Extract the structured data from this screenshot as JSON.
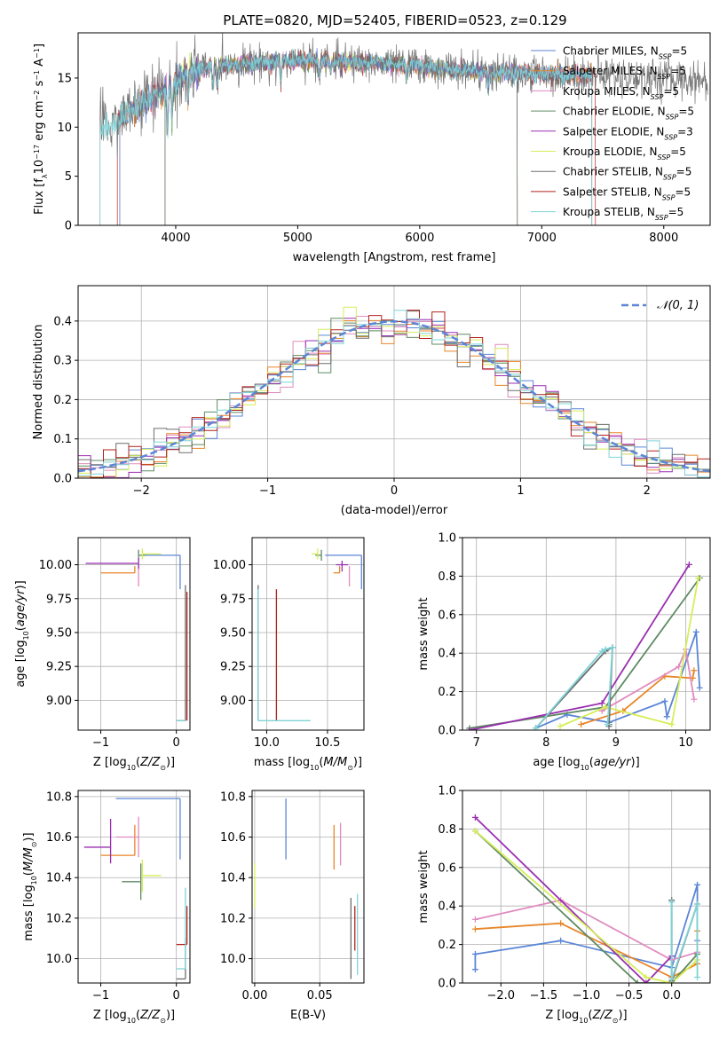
{
  "figure_title": "PLATE=0820, MJD=52405, FIBERID=0523, z=0.129",
  "colors": {
    "chabrier_miles": "#5b86d6",
    "salpeter_miles": "#e8862a",
    "kroupa_miles": "#e08bc0",
    "chabrier_elodie": "#5f8a63",
    "salpeter_elodie": "#9a2fb0",
    "kroupa_elodie": "#d6ee5a",
    "chabrier_stelib": "#6e6e6e",
    "salpeter_stelib": "#b2221c",
    "kroupa_stelib": "#7fd3d6",
    "grid": "#b0b0b0"
  },
  "chart_data": [
    {
      "id": "spectrum",
      "type": "line",
      "title": "PLATE=0820, MJD=52405, FIBERID=0523, z=0.129",
      "xlabel": "wavelength [Angstrom, rest frame]",
      "ylabel": "Flux [f_λ10^-17 erg cm^-2 s^-1 A^-1]",
      "xlim": [
        3200,
        8380
      ],
      "ylim": [
        0,
        19.6
      ],
      "xticks": [
        4000,
        5000,
        6000,
        7000,
        8000
      ],
      "yticks": [
        0,
        5,
        10,
        15
      ],
      "grid": false,
      "legend_position": "top-right",
      "legend": [
        {
          "label": "Chabrier MILES, N_SSP=5",
          "color_key": "chabrier_miles"
        },
        {
          "label": "Salpeter MILES, N_SSP=5",
          "color_key": "salpeter_miles"
        },
        {
          "label": "Kroupa MILES, N_SSP=5",
          "color_key": "kroupa_miles"
        },
        {
          "label": "Chabrier ELODIE, N_SSP=5",
          "color_key": "chabrier_elodie"
        },
        {
          "label": "Salpeter ELODIE, N_SSP=3",
          "color_key": "salpeter_elodie"
        },
        {
          "label": "Kroupa ELODIE, N_SSP=5",
          "color_key": "kroupa_elodie"
        },
        {
          "label": "Chabrier STELIB, N_SSP=5",
          "color_key": "chabrier_stelib"
        },
        {
          "label": "Salpeter STELIB, N_SSP=5",
          "color_key": "salpeter_stelib"
        },
        {
          "label": "Kroupa STELIB, N_SSP=5",
          "color_key": "kroupa_stelib"
        }
      ],
      "continuum": {
        "x": [
          3380,
          3500,
          3650,
          3800,
          3950,
          4100,
          4300,
          4600,
          5000,
          5500,
          6000,
          6500,
          7000,
          7500,
          8000,
          8360
        ],
        "y": [
          9.6,
          10.5,
          11.8,
          13.0,
          14.2,
          15.4,
          16.2,
          16.5,
          16.8,
          16.6,
          16.2,
          15.6,
          15.4,
          15.3,
          15.0,
          14.8
        ]
      },
      "series_ranges": [
        {
          "color_key": "salpeter_stelib",
          "start": 3520,
          "end": 7440
        },
        {
          "color_key": "kroupa_elodie",
          "start": 3910,
          "end": 6800
        },
        {
          "color_key": "salpeter_elodie",
          "start": 3910,
          "end": 6800
        },
        {
          "color_key": "chabrier_elodie",
          "start": 3910,
          "end": 6800
        },
        {
          "color_key": "salpeter_miles",
          "start": 3540,
          "end": 7410
        },
        {
          "color_key": "kroupa_miles",
          "start": 3540,
          "end": 7410
        },
        {
          "color_key": "chabrier_miles",
          "start": 3540,
          "end": 7410
        },
        {
          "color_key": "chabrier_stelib",
          "start": 3380,
          "end": 8360
        },
        {
          "color_key": "kroupa_stelib",
          "start": 3380,
          "end": 7410
        }
      ]
    },
    {
      "id": "residuals",
      "type": "line",
      "xlabel": "(data-model)/error",
      "ylabel": "Normed distribution",
      "xlim": [
        -2.5,
        2.5
      ],
      "ylim": [
        0,
        0.49
      ],
      "xticks": [
        -2,
        -1,
        0,
        1,
        2
      ],
      "yticks": [
        0.0,
        0.1,
        0.2,
        0.3,
        0.4
      ],
      "grid": true,
      "legend_position": "top-right",
      "legend": [
        {
          "label": "𝒩(0, 1)",
          "color_key": "chabrier_miles",
          "style": "dashed"
        }
      ],
      "bin_width": 0.1,
      "bin_start": -2.5,
      "reference_curve": "normal(0,1)"
    },
    {
      "id": "age_vs_Z",
      "type": "scatter",
      "xlabel": "Z [log10(Z/Z⊙)]",
      "ylabel": "age  [log10(age/yr)]",
      "xlim": [
        -1.3,
        0.18
      ],
      "ylim": [
        8.78,
        10.2
      ],
      "xticks": [
        -1,
        0
      ],
      "yticks": [
        9.0,
        9.25,
        9.5,
        9.75,
        10.0
      ],
      "grid": true,
      "points": [
        {
          "color_key": "chabrier_miles",
          "x": 0.05,
          "y": 10.07,
          "xerr": [
            0.45,
            0.0
          ],
          "yerr": [
            0.25,
            0.0
          ]
        },
        {
          "color_key": "salpeter_miles",
          "x": -0.55,
          "y": 9.94,
          "xerr": [
            0.45,
            0.0
          ],
          "yerr": [
            0.0,
            0.05
          ]
        },
        {
          "color_key": "kroupa_miles",
          "x": -0.5,
          "y": 9.94,
          "xerr": [
            0.0,
            0.0
          ],
          "yerr": [
            0.1,
            0.05
          ]
        },
        {
          "color_key": "chabrier_elodie",
          "x": -0.5,
          "y": 10.07,
          "xerr": [
            0.0,
            0.1
          ],
          "yerr": [
            0.04,
            0.04
          ]
        },
        {
          "color_key": "salpeter_elodie",
          "x": -0.5,
          "y": 10.01,
          "xerr": [
            0.7,
            0.0
          ],
          "yerr": [
            0.04,
            0.04
          ]
        },
        {
          "color_key": "kroupa_elodie",
          "x": -0.45,
          "y": 10.08,
          "xerr": [
            0.0,
            0.25
          ],
          "yerr": [
            0.04,
            0.04
          ]
        },
        {
          "color_key": "chabrier_stelib",
          "x": 0.12,
          "y": 8.85,
          "xerr": [
            0.12,
            0.0
          ],
          "yerr": [
            0.0,
            1.0
          ]
        },
        {
          "color_key": "salpeter_stelib",
          "x": 0.14,
          "y": 8.85,
          "xerr": [
            0.0,
            0.0
          ],
          "yerr": [
            0.0,
            0.95
          ]
        },
        {
          "color_key": "kroupa_stelib",
          "x": 0.12,
          "y": 8.85,
          "xerr": [
            0.12,
            0.0
          ],
          "yerr": [
            0.0,
            0.0
          ]
        }
      ]
    },
    {
      "id": "age_vs_mass",
      "type": "scatter",
      "xlabel": "mass [log10(M/M⊙)]",
      "ylabel": "",
      "xlim": [
        9.88,
        10.8
      ],
      "ylim": [
        8.78,
        10.2
      ],
      "xticks": [
        10.0,
        10.5
      ],
      "yticks": [
        9.0,
        9.25,
        9.5,
        9.75,
        10.0
      ],
      "grid": true,
      "points": [
        {
          "color_key": "chabrier_miles",
          "x": 10.78,
          "y": 10.07,
          "xerr": [
            0.3,
            0.0
          ],
          "yerr": [
            0.25,
            0.0
          ]
        },
        {
          "color_key": "salpeter_miles",
          "x": 10.6,
          "y": 9.94,
          "xerr": [
            0.05,
            0.0
          ],
          "yerr": [
            0.0,
            0.05
          ]
        },
        {
          "color_key": "kroupa_miles",
          "x": 10.68,
          "y": 9.94,
          "xerr": [
            0.0,
            0.0
          ],
          "yerr": [
            0.1,
            0.05
          ]
        },
        {
          "color_key": "chabrier_elodie",
          "x": 10.45,
          "y": 10.07,
          "xerr": [
            0.05,
            0.0
          ],
          "yerr": [
            0.04,
            0.04
          ]
        },
        {
          "color_key": "salpeter_elodie",
          "x": 10.62,
          "y": 10.0,
          "xerr": [
            0.05,
            0.05
          ],
          "yerr": [
            0.05,
            0.03
          ]
        },
        {
          "color_key": "kroupa_elodie",
          "x": 10.42,
          "y": 10.08,
          "xerr": [
            0.05,
            0.0
          ],
          "yerr": [
            0.04,
            0.04
          ]
        },
        {
          "color_key": "chabrier_stelib",
          "x": 9.93,
          "y": 8.85,
          "xerr": [
            0.0,
            0.0
          ],
          "yerr": [
            0.0,
            1.0
          ]
        },
        {
          "color_key": "salpeter_stelib",
          "x": 10.08,
          "y": 8.85,
          "xerr": [
            0.0,
            0.0
          ],
          "yerr": [
            0.0,
            0.97
          ]
        },
        {
          "color_key": "kroupa_stelib",
          "x": 9.93,
          "y": 8.85,
          "xerr": [
            0.0,
            0.43
          ],
          "yerr": [
            0.0,
            0.97
          ]
        }
      ]
    },
    {
      "id": "mass_weight_vs_age",
      "type": "line",
      "xlabel": "age  [log10(age/yr)]",
      "ylabel": "mass weight",
      "xlim": [
        6.8,
        10.35
      ],
      "ylim": [
        0,
        1.0
      ],
      "xticks": [
        7,
        8,
        9,
        10
      ],
      "yticks": [
        0.0,
        0.2,
        0.4,
        0.6,
        0.8,
        1.0
      ],
      "grid": true,
      "series": [
        {
          "color_key": "chabrier_miles",
          "x": [
            7.85,
            8.3,
            8.9,
            9.7,
            9.73,
            10.15,
            10.2
          ],
          "y": [
            0.01,
            0.08,
            0.04,
            0.15,
            0.07,
            0.51,
            0.22
          ]
        },
        {
          "color_key": "salpeter_miles",
          "x": [
            8.5,
            9.1,
            9.7,
            10.1,
            10.12
          ],
          "y": [
            0.03,
            0.1,
            0.28,
            0.27,
            0.31
          ]
        },
        {
          "color_key": "kroupa_miles",
          "x": [
            8.8,
            9.9,
            10.0,
            10.12
          ],
          "y": [
            0.1,
            0.33,
            0.42,
            0.16
          ]
        },
        {
          "color_key": "chabrier_elodie",
          "x": [
            6.9,
            8.85,
            10.2
          ],
          "y": [
            0.01,
            0.12,
            0.79
          ]
        },
        {
          "color_key": "salpeter_elodie",
          "x": [
            6.9,
            8.8,
            10.05
          ],
          "y": [
            0.0,
            0.14,
            0.86
          ]
        },
        {
          "color_key": "kroupa_elodie",
          "x": [
            8.2,
            8.85,
            9.8,
            10.18
          ],
          "y": [
            0.02,
            0.12,
            0.03,
            0.79
          ]
        },
        {
          "color_key": "chabrier_stelib",
          "x": [
            7.85,
            8.85,
            8.95,
            8.9,
            8.9
          ],
          "y": [
            0.01,
            0.41,
            0.43,
            0.02,
            0.03
          ]
        },
        {
          "color_key": "salpeter_stelib",
          "x": [],
          "y": []
        },
        {
          "color_key": "kroupa_stelib",
          "x": [
            7.85,
            8.8,
            8.85,
            8.95,
            8.88
          ],
          "y": [
            0.01,
            0.41,
            0.42,
            0.43,
            0.03
          ]
        }
      ]
    },
    {
      "id": "mass_vs_Z",
      "type": "scatter",
      "xlabel": "Z [log10(Z/Z⊙)]",
      "ylabel": "mass [log10(M/M⊙)]",
      "xlim": [
        -1.3,
        0.18
      ],
      "ylim": [
        9.88,
        10.83
      ],
      "xticks": [
        -1,
        0
      ],
      "yticks": [
        10.0,
        10.2,
        10.4,
        10.6,
        10.8
      ],
      "grid": true,
      "points": [
        {
          "color_key": "chabrier_miles",
          "x": 0.05,
          "y": 10.79,
          "xerr": [
            0.85,
            0.0
          ],
          "yerr": [
            0.3,
            0.0
          ]
        },
        {
          "color_key": "salpeter_miles",
          "x": -0.55,
          "y": 10.51,
          "xerr": [
            0.45,
            0.0
          ],
          "yerr": [
            0.0,
            0.15
          ]
        },
        {
          "color_key": "kroupa_miles",
          "x": -0.5,
          "y": 10.6,
          "xerr": [
            0.3,
            0.0
          ],
          "yerr": [
            0.1,
            0.1
          ]
        },
        {
          "color_key": "chabrier_elodie",
          "x": -0.47,
          "y": 10.38,
          "xerr": [
            0.25,
            0.0
          ],
          "yerr": [
            0.09,
            0.09
          ]
        },
        {
          "color_key": "salpeter_elodie",
          "x": -0.87,
          "y": 10.55,
          "xerr": [
            0.35,
            0.0
          ],
          "yerr": [
            0.08,
            0.14
          ]
        },
        {
          "color_key": "kroupa_elodie",
          "x": -0.45,
          "y": 10.41,
          "xerr": [
            0.0,
            0.25
          ],
          "yerr": [
            0.08,
            0.08
          ]
        },
        {
          "color_key": "chabrier_stelib",
          "x": 0.12,
          "y": 9.9,
          "xerr": [
            0.12,
            0.0
          ],
          "yerr": [
            0.0,
            0.2
          ]
        },
        {
          "color_key": "salpeter_stelib",
          "x": 0.14,
          "y": 10.07,
          "xerr": [
            0.14,
            0.0
          ],
          "yerr": [
            0.0,
            0.19
          ]
        },
        {
          "color_key": "kroupa_stelib",
          "x": 0.12,
          "y": 9.95,
          "xerr": [
            0.12,
            0.0
          ],
          "yerr": [
            0.0,
            0.4
          ]
        }
      ]
    },
    {
      "id": "mass_vs_EBV",
      "type": "scatter",
      "xlabel": "E(B-V)",
      "ylabel": "",
      "xlim": [
        -0.002,
        0.084
      ],
      "ylim": [
        9.88,
        10.83
      ],
      "xticks": [
        0.0,
        0.05
      ],
      "yticks": [
        10.0,
        10.2,
        10.4,
        10.6,
        10.8
      ],
      "grid": true,
      "points": [
        {
          "color_key": "kroupa_elodie",
          "x": 0.0,
          "y": 10.37,
          "xerr": [
            0,
            0
          ],
          "yerr": [
            0.12,
            0.1
          ]
        },
        {
          "color_key": "chabrier_miles",
          "x": 0.024,
          "y": 10.64,
          "xerr": [
            0,
            0
          ],
          "yerr": [
            0.15,
            0.15
          ]
        },
        {
          "color_key": "salpeter_miles",
          "x": 0.061,
          "y": 10.55,
          "xerr": [
            0,
            0
          ],
          "yerr": [
            0.11,
            0.11
          ]
        },
        {
          "color_key": "kroupa_miles",
          "x": 0.066,
          "y": 10.57,
          "xerr": [
            0,
            0
          ],
          "yerr": [
            0.11,
            0.1
          ]
        },
        {
          "color_key": "chabrier_stelib",
          "x": 0.074,
          "y": 10.1,
          "xerr": [
            0,
            0
          ],
          "yerr": [
            0.2,
            0.2
          ]
        },
        {
          "color_key": "salpeter_stelib",
          "x": 0.077,
          "y": 10.18,
          "xerr": [
            0,
            0
          ],
          "yerr": [
            0.14,
            0.08
          ]
        },
        {
          "color_key": "kroupa_stelib",
          "x": 0.079,
          "y": 10.12,
          "xerr": [
            0,
            0
          ],
          "yerr": [
            0.2,
            0.2
          ]
        }
      ]
    },
    {
      "id": "mass_weight_vs_Z",
      "type": "line",
      "xlabel": "Z [log10(Z/Z⊙)]",
      "ylabel": "mass weight",
      "xlim": [
        -2.45,
        0.45
      ],
      "ylim": [
        0,
        1.0
      ],
      "xticks": [
        -2.0,
        -1.5,
        -1.0,
        -0.5,
        0.0
      ],
      "yticks": [
        0.0,
        0.2,
        0.4,
        0.6,
        0.8,
        1.0
      ],
      "grid": true,
      "series": [
        {
          "color_key": "chabrier_miles",
          "x": [
            -2.3,
            -2.3,
            -1.3,
            0.0,
            0.3,
            0.3
          ],
          "y": [
            0.07,
            0.15,
            0.22,
            0.08,
            0.51,
            0.22
          ]
        },
        {
          "color_key": "salpeter_miles",
          "x": [
            -2.3,
            -1.3,
            0.0,
            0.3,
            0.3
          ],
          "y": [
            0.28,
            0.31,
            0.03,
            0.1,
            0.27
          ]
        },
        {
          "color_key": "kroupa_miles",
          "x": [
            -2.3,
            -1.3,
            0.0,
            0.3
          ],
          "y": [
            0.33,
            0.43,
            0.12,
            0.16
          ]
        },
        {
          "color_key": "chabrier_elodie",
          "x": [
            -2.3,
            -0.4,
            0.0,
            0.3
          ],
          "y": [
            0.79,
            0.0,
            0.0,
            0.15
          ]
        },
        {
          "color_key": "salpeter_elodie",
          "x": [
            -2.3,
            -0.3,
            0.0
          ],
          "y": [
            0.86,
            0.0,
            0.14
          ]
        },
        {
          "color_key": "kroupa_elodie",
          "x": [
            -2.3,
            -0.3,
            0.0,
            0.3
          ],
          "y": [
            0.79,
            0.03,
            0.0,
            0.12
          ]
        },
        {
          "color_key": "chabrier_stelib",
          "x": [
            0.0,
            0.0,
            0.3
          ],
          "y": [
            0.43,
            0.01,
            0.41
          ]
        },
        {
          "color_key": "salpeter_stelib",
          "x": [],
          "y": []
        },
        {
          "color_key": "kroupa_stelib",
          "x": [
            0.0,
            0.0,
            0.3,
            0.3
          ],
          "y": [
            0.42,
            0.02,
            0.41,
            0.03
          ]
        }
      ]
    }
  ]
}
